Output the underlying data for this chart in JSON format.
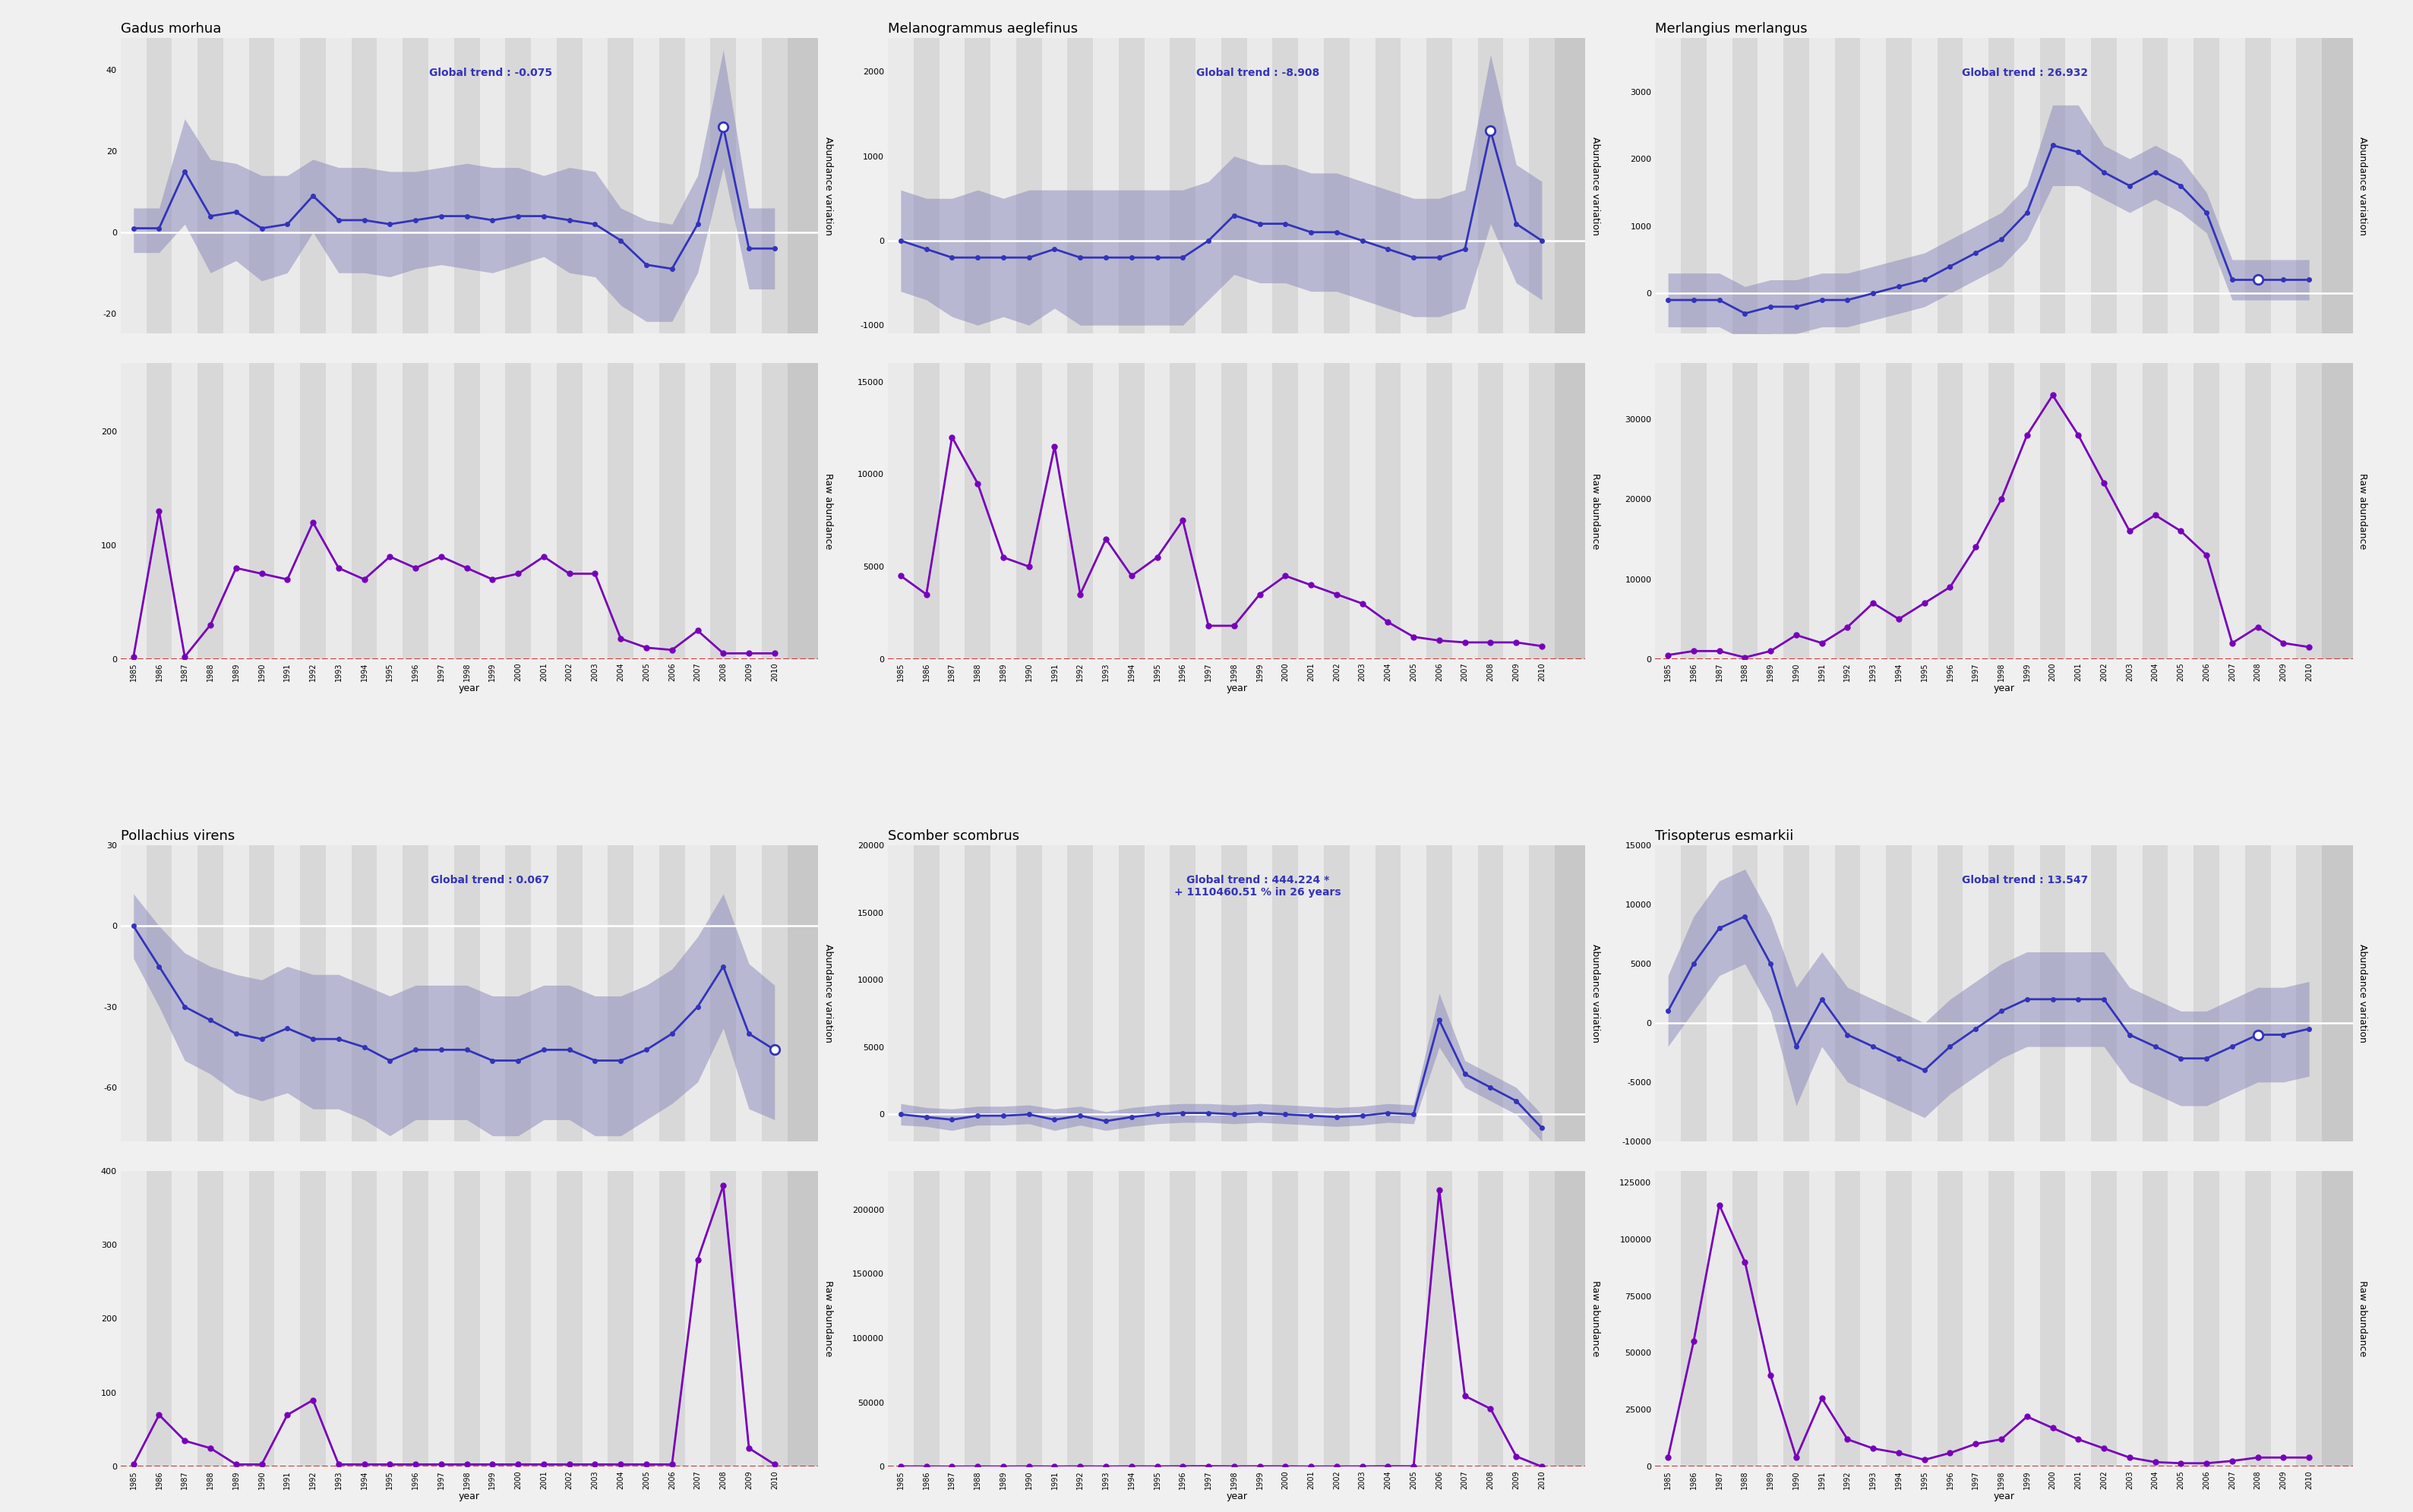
{
  "species": [
    "Gadus morhua",
    "Melanogrammus aeglefinus",
    "Merlangius merlangus",
    "Pollachius virens",
    "Scomber scombrus",
    "Trisopterus esmarkii"
  ],
  "global_trends": [
    "Global trend : -0.075",
    "Global trend : -8.908",
    "Global trend : 26.932",
    "Global trend : 0.067",
    "Global trend : 444.224 *\n+ 1110460.51 % in 26 years",
    "Global trend : 13.547"
  ],
  "years": [
    1985,
    1986,
    1987,
    1988,
    1989,
    1990,
    1991,
    1992,
    1993,
    1994,
    1995,
    1996,
    1997,
    1998,
    1999,
    2000,
    2001,
    2002,
    2003,
    2004,
    2005,
    2006,
    2007,
    2008,
    2009,
    2010
  ],
  "abund_var": {
    "gadus": [
      1,
      1,
      15,
      4,
      5,
      1,
      2,
      9,
      3,
      3,
      2,
      3,
      4,
      4,
      3,
      4,
      4,
      3,
      2,
      -2,
      -8,
      -9,
      2,
      26,
      -4,
      -4
    ],
    "gadus_lo": [
      -5,
      -5,
      2,
      -10,
      -7,
      -12,
      -10,
      0,
      -10,
      -10,
      -11,
      -9,
      -8,
      -9,
      -10,
      -8,
      -6,
      -10,
      -11,
      -18,
      -22,
      -22,
      -10,
      16,
      -14,
      -14
    ],
    "gadus_hi": [
      6,
      6,
      28,
      18,
      17,
      14,
      14,
      18,
      16,
      16,
      15,
      15,
      16,
      17,
      16,
      16,
      14,
      16,
      15,
      6,
      3,
      2,
      14,
      45,
      6,
      6
    ],
    "gadus_open": [
      false,
      false,
      false,
      false,
      false,
      false,
      false,
      false,
      false,
      false,
      false,
      false,
      false,
      false,
      false,
      false,
      false,
      false,
      false,
      false,
      false,
      false,
      false,
      true,
      false,
      false
    ],
    "melanogrammus": [
      0,
      -100,
      -200,
      -200,
      -200,
      -200,
      -100,
      -200,
      -200,
      -200,
      -200,
      -200,
      0,
      300,
      200,
      200,
      100,
      100,
      0,
      -100,
      -200,
      -200,
      -100,
      1300,
      200,
      0
    ],
    "melanogrammus_lo": [
      -600,
      -700,
      -900,
      -1000,
      -900,
      -1000,
      -800,
      -1000,
      -1000,
      -1000,
      -1000,
      -1000,
      -700,
      -400,
      -500,
      -500,
      -600,
      -600,
      -700,
      -800,
      -900,
      -900,
      -800,
      200,
      -500,
      -700
    ],
    "melanogrammus_hi": [
      600,
      500,
      500,
      600,
      500,
      600,
      600,
      600,
      600,
      600,
      600,
      600,
      700,
      1000,
      900,
      900,
      800,
      800,
      700,
      600,
      500,
      500,
      600,
      2200,
      900,
      700
    ],
    "melanogrammus_open": [
      false,
      false,
      false,
      false,
      false,
      false,
      false,
      false,
      false,
      false,
      false,
      false,
      false,
      false,
      false,
      false,
      false,
      false,
      false,
      false,
      false,
      false,
      false,
      true,
      false,
      false
    ],
    "merlangius": [
      -100,
      -100,
      -100,
      -300,
      -200,
      -200,
      -100,
      -100,
      0,
      100,
      200,
      400,
      600,
      800,
      1200,
      2200,
      2100,
      1800,
      1600,
      1800,
      1600,
      1200,
      200,
      200,
      200,
      200
    ],
    "merlangius_lo": [
      -500,
      -500,
      -500,
      -700,
      -600,
      -600,
      -500,
      -500,
      -400,
      -300,
      -200,
      0,
      200,
      400,
      800,
      1600,
      1600,
      1400,
      1200,
      1400,
      1200,
      900,
      -100,
      -100,
      -100,
      -100
    ],
    "merlangius_hi": [
      300,
      300,
      300,
      100,
      200,
      200,
      300,
      300,
      400,
      500,
      600,
      800,
      1000,
      1200,
      1600,
      2800,
      2800,
      2200,
      2000,
      2200,
      2000,
      1500,
      500,
      500,
      500,
      500
    ],
    "merlangius_open": [
      false,
      false,
      false,
      false,
      false,
      false,
      false,
      false,
      false,
      false,
      false,
      false,
      false,
      false,
      false,
      false,
      false,
      false,
      false,
      false,
      false,
      false,
      false,
      true,
      false,
      false
    ],
    "pollachius": [
      0,
      -15,
      -30,
      -35,
      -40,
      -42,
      -38,
      -42,
      -42,
      -45,
      -50,
      -46,
      -46,
      -46,
      -50,
      -50,
      -46,
      -46,
      -50,
      -50,
      -46,
      -40,
      -30,
      -15,
      -40,
      -46
    ],
    "pollachius_lo": [
      -12,
      -30,
      -50,
      -55,
      -62,
      -65,
      -62,
      -68,
      -68,
      -72,
      -78,
      -72,
      -72,
      -72,
      -78,
      -78,
      -72,
      -72,
      -78,
      -78,
      -72,
      -66,
      -58,
      -38,
      -68,
      -72
    ],
    "pollachius_hi": [
      12,
      0,
      -10,
      -15,
      -18,
      -20,
      -15,
      -18,
      -18,
      -22,
      -26,
      -22,
      -22,
      -22,
      -26,
      -26,
      -22,
      -22,
      -26,
      -26,
      -22,
      -16,
      -4,
      12,
      -14,
      -22
    ],
    "pollachius_open": [
      false,
      false,
      false,
      false,
      false,
      false,
      false,
      false,
      false,
      false,
      false,
      false,
      false,
      false,
      false,
      false,
      false,
      false,
      false,
      false,
      false,
      false,
      false,
      false,
      false,
      true
    ],
    "scomber": [
      0,
      -200,
      -400,
      -100,
      -100,
      0,
      -400,
      -100,
      -500,
      -200,
      0,
      100,
      100,
      0,
      100,
      0,
      -100,
      -200,
      -100,
      100,
      0,
      7000,
      3000,
      2000,
      1000,
      -1000
    ],
    "scomber_lo": [
      -800,
      -900,
      -1200,
      -800,
      -800,
      -700,
      -1200,
      -800,
      -1200,
      -900,
      -700,
      -600,
      -600,
      -700,
      -600,
      -700,
      -800,
      -900,
      -800,
      -600,
      -700,
      5000,
      2000,
      1000,
      0,
      -2000
    ],
    "scomber_hi": [
      800,
      500,
      400,
      600,
      600,
      700,
      400,
      600,
      200,
      500,
      700,
      800,
      800,
      700,
      800,
      700,
      600,
      500,
      600,
      800,
      700,
      9000,
      4000,
      3000,
      2000,
      0
    ],
    "scomber_open": [
      false,
      false,
      false,
      false,
      false,
      false,
      false,
      false,
      false,
      false,
      false,
      false,
      false,
      false,
      false,
      false,
      false,
      false,
      false,
      false,
      false,
      false,
      false,
      false,
      false,
      false
    ],
    "trisopterus": [
      1000,
      5000,
      8000,
      9000,
      5000,
      -2000,
      2000,
      -1000,
      -2000,
      -3000,
      -4000,
      -2000,
      -500,
      1000,
      2000,
      2000,
      2000,
      2000,
      -1000,
      -2000,
      -3000,
      -3000,
      -2000,
      -1000,
      -1000,
      -500
    ],
    "trisopterus_lo": [
      -2000,
      1000,
      4000,
      5000,
      1000,
      -7000,
      -2000,
      -5000,
      -6000,
      -7000,
      -8000,
      -6000,
      -4500,
      -3000,
      -2000,
      -2000,
      -2000,
      -2000,
      -5000,
      -6000,
      -7000,
      -7000,
      -6000,
      -5000,
      -5000,
      -4500
    ],
    "trisopterus_hi": [
      4000,
      9000,
      12000,
      13000,
      9000,
      3000,
      6000,
      3000,
      2000,
      1000,
      0,
      2000,
      3500,
      5000,
      6000,
      6000,
      6000,
      6000,
      3000,
      2000,
      1000,
      1000,
      2000,
      3000,
      3000,
      3500
    ],
    "trisopterus_open": [
      false,
      false,
      false,
      false,
      false,
      false,
      false,
      false,
      false,
      false,
      false,
      false,
      false,
      false,
      false,
      false,
      false,
      false,
      false,
      false,
      false,
      false,
      false,
      true,
      false,
      false
    ]
  },
  "raw_abund": {
    "gadus": [
      2,
      130,
      2,
      30,
      80,
      75,
      70,
      120,
      80,
      70,
      90,
      80,
      90,
      80,
      70,
      75,
      90,
      75,
      75,
      18,
      10,
      8,
      25,
      5,
      5,
      5
    ],
    "melanogrammus": [
      4500,
      3500,
      12000,
      9500,
      5500,
      5000,
      11500,
      3500,
      6500,
      4500,
      5500,
      7500,
      1800,
      1800,
      3500,
      4500,
      4000,
      3500,
      3000,
      2000,
      1200,
      1000,
      900,
      900,
      900,
      700
    ],
    "merlangius": [
      500,
      1000,
      1000,
      200,
      1000,
      3000,
      2000,
      4000,
      7000,
      5000,
      7000,
      9000,
      14000,
      20000,
      28000,
      33000,
      28000,
      22000,
      16000,
      18000,
      16000,
      13000,
      2000,
      4000,
      2000,
      1500
    ],
    "pollachius": [
      3,
      70,
      35,
      25,
      3,
      3,
      70,
      90,
      3,
      3,
      3,
      3,
      3,
      3,
      3,
      3,
      3,
      3,
      3,
      3,
      3,
      3,
      280,
      380,
      25,
      3
    ],
    "scomber": [
      150,
      80,
      40,
      80,
      80,
      120,
      80,
      150,
      80,
      150,
      150,
      250,
      350,
      150,
      250,
      150,
      80,
      80,
      150,
      250,
      250,
      215000,
      55000,
      45000,
      8000,
      25
    ],
    "trisopterus": [
      4000,
      55000,
      115000,
      90000,
      40000,
      4000,
      30000,
      12000,
      8000,
      6000,
      3000,
      6000,
      10000,
      12000,
      22000,
      17000,
      12000,
      8000,
      4000,
      2000,
      1500,
      1500,
      2500,
      4000,
      4000,
      4000
    ]
  },
  "ylims_var": {
    "gadus": [
      -25,
      48
    ],
    "melanogrammus": [
      -1100,
      2400
    ],
    "merlangius": [
      -600,
      3800
    ],
    "pollachius": [
      -80,
      30
    ],
    "scomber": [
      -2000,
      20000
    ],
    "trisopterus": [
      -10000,
      15000
    ]
  },
  "yticks_var": {
    "gadus": [
      -20,
      0,
      20,
      40
    ],
    "melanogrammus": [
      -1000,
      0,
      1000,
      2000
    ],
    "merlangius": [
      0,
      1000,
      2000,
      3000
    ],
    "pollachius": [
      -60,
      -30,
      0,
      30
    ],
    "scomber": [
      0,
      5000,
      10000,
      15000,
      20000
    ],
    "trisopterus": [
      -10000,
      -5000,
      0,
      5000,
      10000,
      15000
    ]
  },
  "ylims_raw": {
    "gadus": [
      0,
      260
    ],
    "melanogrammus": [
      0,
      16000
    ],
    "merlangius": [
      0,
      37000
    ],
    "pollachius": [
      0,
      400
    ],
    "scomber": [
      0,
      230000
    ],
    "trisopterus": [
      0,
      130000
    ]
  },
  "yticks_raw": {
    "gadus": [
      0,
      100,
      200
    ],
    "melanogrammus": [
      0,
      5000,
      10000,
      15000
    ],
    "merlangius": [
      0,
      10000,
      20000,
      30000
    ],
    "pollachius": [
      0,
      100,
      200,
      300,
      400
    ],
    "scomber": [
      0,
      50000,
      100000,
      150000,
      200000
    ],
    "trisopterus": [
      0,
      25000,
      50000,
      75000,
      100000,
      125000
    ]
  },
  "bg_color": "#f0f0f0",
  "panel_bg": "#e0e0e0",
  "stripe_light": "#eaeaea",
  "stripe_dark": "#d8d8d8",
  "band_color": "#8888bb",
  "line_color_blue": "#3333bb",
  "line_color_purple": "#7700bb",
  "open_circle_color": "#ffffff",
  "dashed_red": "#cc3333",
  "right_panel_bg": "#c8c8c8"
}
